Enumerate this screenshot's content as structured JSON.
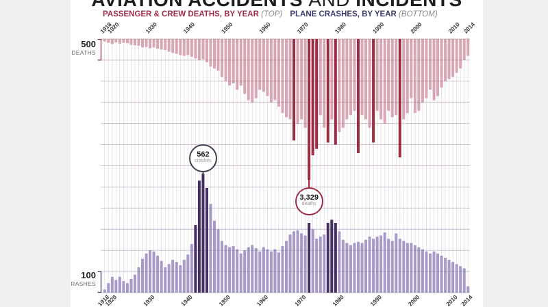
{
  "header": {
    "title_part1": "AVIATION ACCIDENTS ",
    "title_part2": "AND",
    "title_part3": " INCIDENTS",
    "subtitle_left": "PASSENGER & CREW DEATHS, BY YEAR",
    "subtitle_left_qualifier": "(TOP)",
    "subtitle_right": "PLANE CRASHES, BY YEAR",
    "subtitle_right_qualifier": "(BOTTOM)"
  },
  "scale_labels": {
    "deaths": {
      "value": "500",
      "unit": "DEATHS"
    },
    "crashes": {
      "value": "100",
      "unit": "CRASHES"
    }
  },
  "annotations": [
    {
      "value": "562",
      "unit": "crashes",
      "year": 1944
    },
    {
      "value": "3,329",
      "unit": "deaths",
      "year": 1972
    }
  ],
  "axis": {
    "tick_labels": [
      "1918",
      "1920",
      "1930",
      "1940",
      "1950",
      "1960",
      "1970",
      "1980",
      "1990",
      "2000",
      "2010",
      "2014"
    ]
  },
  "colors": {
    "deaths_bar": "#d9a7b3",
    "deaths_highlight": "#9c2c42",
    "crashes_bar": "#a79ac8",
    "crashes_highlight": "#443064",
    "deaths_accent": "#a03048",
    "crashes_accent": "#3d3c70",
    "background": "#ffffff",
    "letterbox": "#eff0f0"
  },
  "chart_data": [
    {
      "type": "bar",
      "name": "passenger-crew-deaths",
      "title": "PASSENGER & CREW DEATHS, BY YEAR (TOP)",
      "orientation": "top_down",
      "year_start": 1918,
      "year_end": 2014,
      "scale": {
        "per_gridline": 500,
        "unit": "deaths"
      },
      "values": [
        60,
        90,
        120,
        80,
        110,
        90,
        100,
        140,
        150,
        160,
        200,
        190,
        220,
        200,
        230,
        250,
        260,
        300,
        330,
        350,
        380,
        400,
        380,
        420,
        460,
        500,
        480,
        550,
        650,
        700,
        750,
        900,
        1000,
        1100,
        1050,
        1200,
        1100,
        1300,
        1450,
        1500,
        1400,
        1200,
        1250,
        1350,
        1500,
        1450,
        1600,
        1750,
        1850,
        1900,
        2400,
        2000,
        1900,
        2100,
        3329,
        2750,
        2600,
        1800,
        2100,
        2450,
        1900,
        2500,
        2200,
        2100,
        1900,
        1800,
        1700,
        2700,
        1800,
        1900,
        2100,
        2450,
        1700,
        1900,
        2000,
        1700,
        1850,
        1800,
        2800,
        1900,
        1750,
        1400,
        1750,
        1700,
        1500,
        1400,
        1200,
        1450,
        1350,
        1150,
        1000,
        950,
        900,
        800,
        700,
        500,
        400
      ],
      "highlight_years": [
        1968,
        1972,
        1973,
        1974,
        1977,
        1979,
        1985,
        1989,
        1996
      ],
      "annotation": {
        "year": 1972,
        "value": 3329,
        "label": "3,329 deaths"
      },
      "colors": {
        "bar": "#d9a7b3",
        "highlight": "#9c2c42"
      }
    },
    {
      "type": "bar",
      "name": "plane-crashes",
      "title": "PLANE CRASHES, BY YEAR (BOTTOM)",
      "orientation": "bottom_up",
      "year_start": 1918,
      "year_end": 2014,
      "scale": {
        "per_gridline": 100,
        "unit": "crashes"
      },
      "values": [
        15,
        45,
        75,
        60,
        75,
        55,
        45,
        65,
        85,
        120,
        160,
        185,
        200,
        195,
        175,
        150,
        120,
        135,
        155,
        145,
        130,
        155,
        180,
        230,
        320,
        530,
        562,
        495,
        420,
        340,
        300,
        245,
        225,
        215,
        220,
        205,
        185,
        200,
        215,
        225,
        210,
        195,
        215,
        205,
        195,
        205,
        190,
        220,
        245,
        275,
        290,
        295,
        280,
        270,
        330,
        300,
        255,
        265,
        275,
        330,
        345,
        330,
        290,
        250,
        235,
        225,
        235,
        240,
        235,
        250,
        265,
        255,
        265,
        270,
        285,
        255,
        245,
        280,
        255,
        245,
        235,
        235,
        225,
        215,
        205,
        195,
        185,
        195,
        185,
        175,
        165,
        155,
        145,
        135,
        125,
        115,
        30
      ],
      "highlight_years": [
        1942,
        1943,
        1944,
        1945,
        1972,
        1977,
        1978,
        1979
      ],
      "annotation": {
        "year": 1944,
        "value": 562,
        "label": "562 crashes"
      },
      "colors": {
        "bar": "#a79ac8",
        "highlight": "#443064"
      }
    }
  ]
}
